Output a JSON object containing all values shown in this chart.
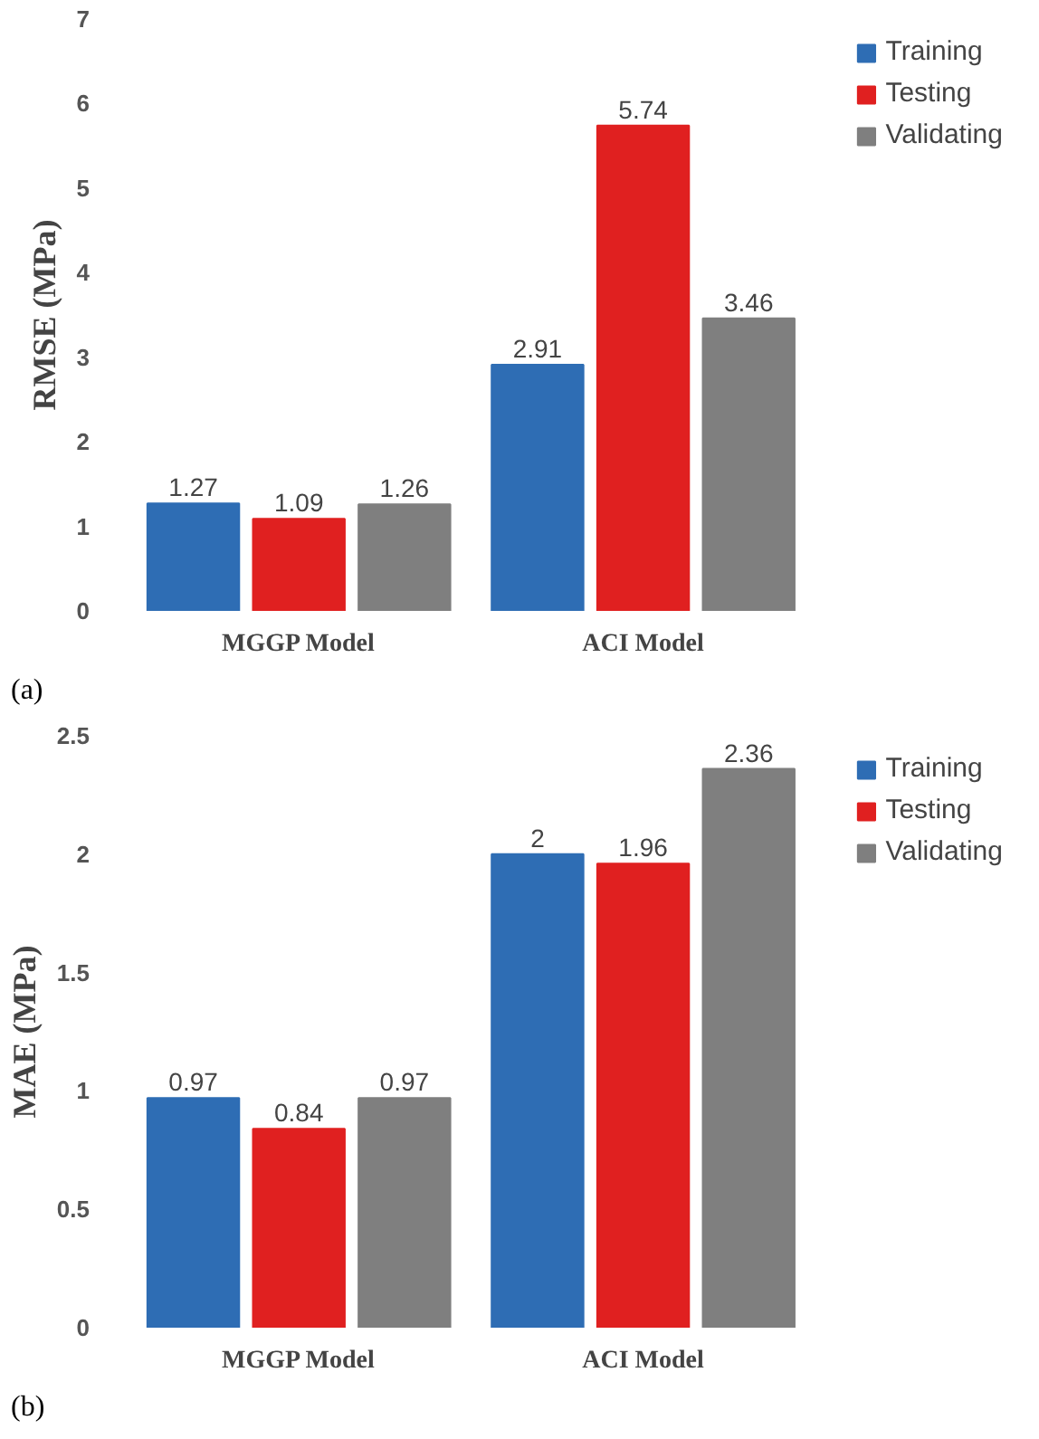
{
  "chart_data": [
    {
      "type": "bar",
      "ylabel": "RMSE (MPa)",
      "categories": [
        "MGGP Model",
        "ACI Model"
      ],
      "ylim": [
        0,
        7
      ],
      "yticks": [
        0,
        1,
        2,
        3,
        4,
        5,
        6,
        7
      ],
      "data_labels": true,
      "legend": "top right",
      "grid": false,
      "annotations": [
        "(a)"
      ],
      "series": [
        {
          "name": "Training",
          "color": "#2e6db4",
          "values": [
            1.27,
            2.91
          ]
        },
        {
          "name": "Testing",
          "color": "#e02020",
          "values": [
            1.09,
            5.74
          ]
        },
        {
          "name": "Validating",
          "color": "#7f7f7f",
          "values": [
            1.26,
            3.46
          ]
        }
      ]
    },
    {
      "type": "bar",
      "ylabel": "MAE (MPa)",
      "categories": [
        "MGGP Model",
        "ACI Model"
      ],
      "ylim": [
        0,
        2.5
      ],
      "yticks": [
        0,
        0.5,
        1,
        1.5,
        2,
        2.5
      ],
      "data_labels": true,
      "legend": "top right",
      "grid": false,
      "annotations": [
        "(b)"
      ],
      "series": [
        {
          "name": "Training",
          "color": "#2e6db4",
          "values": [
            0.97,
            2
          ]
        },
        {
          "name": "Testing",
          "color": "#e02020",
          "values": [
            0.84,
            1.96
          ]
        },
        {
          "name": "Validating",
          "color": "#7f7f7f",
          "values": [
            0.97,
            2.36
          ]
        }
      ]
    }
  ]
}
